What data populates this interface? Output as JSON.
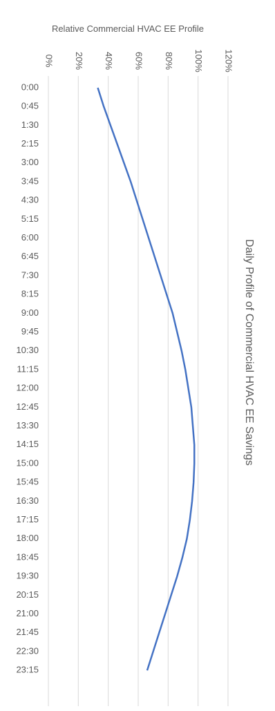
{
  "chart_data": {
    "type": "line",
    "title": "Daily Profile of Commercial HVAC EE Savings",
    "y_axis_label": "Relative Commercial HVAC EE Profile",
    "categories": [
      "0:00",
      "0:45",
      "1:30",
      "2:15",
      "3:00",
      "3:45",
      "4:30",
      "5:15",
      "6:00",
      "6:45",
      "7:30",
      "8:15",
      "9:00",
      "9:45",
      "10:30",
      "11:15",
      "12:00",
      "12:45",
      "13:30",
      "14:15",
      "15:00",
      "15:45",
      "16:30",
      "17:15",
      "18:00",
      "18:45",
      "19:30",
      "20:15",
      "21:00",
      "21:45",
      "22:30",
      "23:15"
    ],
    "series": [
      {
        "color": "#4472c4",
        "values": [
          33,
          37,
          41.5,
          46,
          50.5,
          55,
          59,
          63,
          67,
          71,
          75,
          79,
          83,
          86,
          89,
          91.5,
          93.5,
          95.5,
          96.5,
          97.5,
          97.5,
          97,
          96,
          94.5,
          92.5,
          89.5,
          86,
          82,
          78,
          74,
          70,
          66
        ]
      }
    ],
    "ylim": [
      0,
      120
    ],
    "yticks": [
      {
        "value": 0,
        "label": "0%"
      },
      {
        "value": 20,
        "label": "20%"
      },
      {
        "value": 40,
        "label": "40%"
      },
      {
        "value": 60,
        "label": "60%"
      },
      {
        "value": 80,
        "label": "80%"
      },
      {
        "value": 100,
        "label": "100%"
      },
      {
        "value": 120,
        "label": "120%"
      }
    ],
    "grid": true
  }
}
